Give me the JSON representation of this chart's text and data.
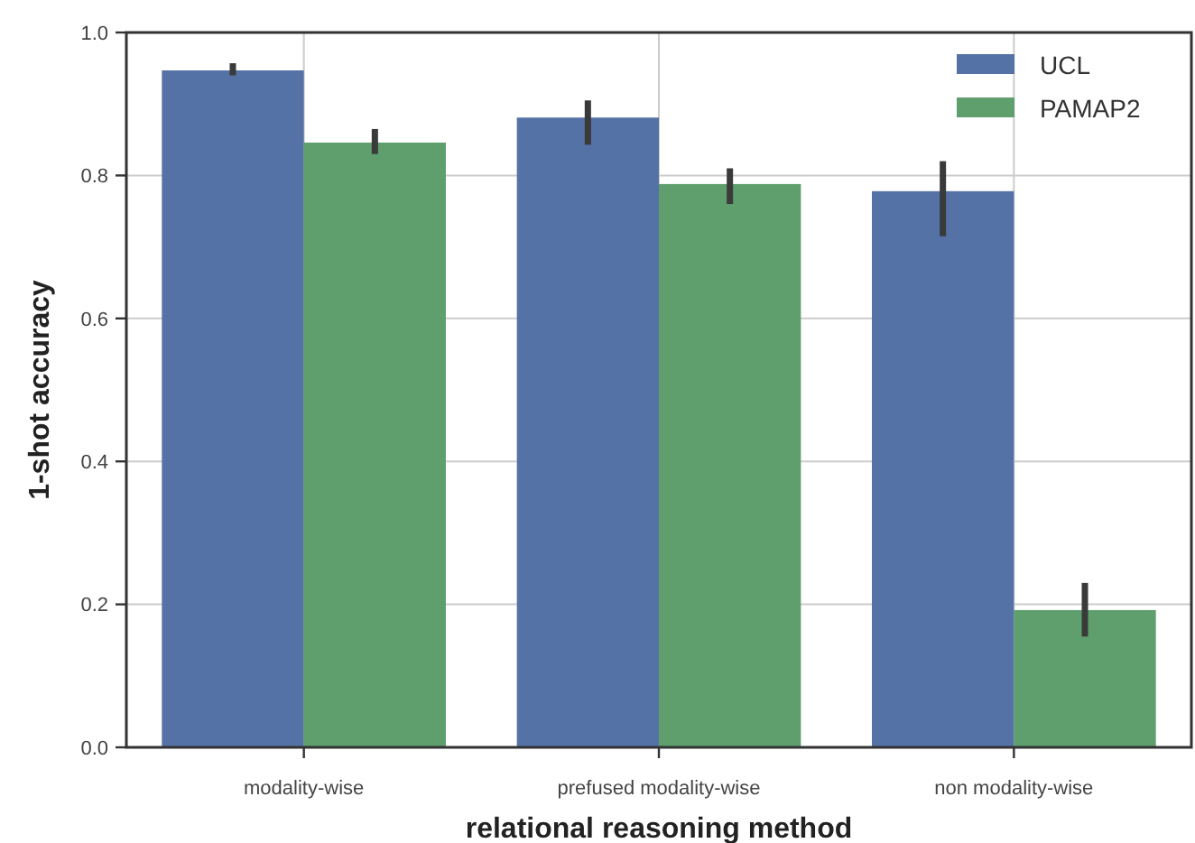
{
  "chart_data": {
    "type": "bar",
    "xlabel": "relational reasoning method",
    "ylabel": "1-shot accuracy",
    "categories": [
      "modality-wise",
      "prefused modality-wise",
      "non modality-wise"
    ],
    "series": [
      {
        "name": "UCL",
        "color": "#5572a6",
        "values": [
          0.947,
          0.881,
          0.778
        ],
        "errors": [
          [
            0.94,
            0.957
          ],
          [
            0.843,
            0.905
          ],
          [
            0.715,
            0.82
          ]
        ]
      },
      {
        "name": "PAMAP2",
        "color": "#5f9e6d",
        "values": [
          0.846,
          0.788,
          0.192
        ],
        "errors": [
          [
            0.83,
            0.865
          ],
          [
            0.76,
            0.81
          ],
          [
            0.155,
            0.23
          ]
        ]
      }
    ],
    "ylim": [
      0,
      1
    ],
    "yticks": [
      {
        "value": 0,
        "label": "0.0"
      },
      {
        "value": 0.2,
        "label": "0.2"
      },
      {
        "value": 0.4,
        "label": "0.4"
      },
      {
        "value": 0.6,
        "label": "0.6"
      },
      {
        "value": 0.8,
        "label": "0.8"
      },
      {
        "value": 1,
        "label": "1.0"
      }
    ],
    "grid": true,
    "legend": "top right"
  }
}
